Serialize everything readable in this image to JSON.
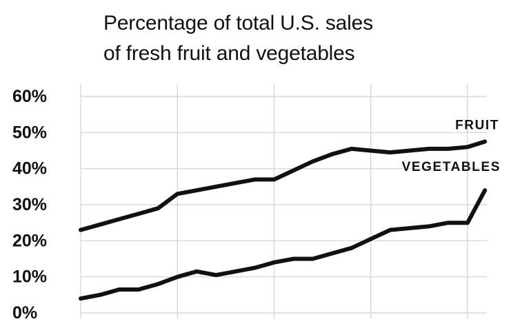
{
  "chart_data": {
    "type": "line",
    "title": "Percentage of total U.S. sales",
    "subtitle": "of fresh fruit and vegetables",
    "xlabel": "",
    "ylabel": "",
    "ylim": [
      0,
      60
    ],
    "xlim": [
      0,
      21
    ],
    "grid": true,
    "legend": "inline",
    "yticks": [
      {
        "value": 60,
        "label": "60%"
      },
      {
        "value": 50,
        "label": "50%"
      },
      {
        "value": 40,
        "label": "40%"
      },
      {
        "value": 30,
        "label": "30%"
      },
      {
        "value": 20,
        "label": "20%"
      },
      {
        "value": 10,
        "label": "10%"
      },
      {
        "value": 0,
        "label": "0%"
      }
    ],
    "x": [
      0,
      1,
      2,
      3,
      4,
      5,
      6,
      7,
      8,
      9,
      10,
      11,
      12,
      13,
      14,
      15,
      16,
      17,
      18,
      19,
      20,
      20.9
    ],
    "series": [
      {
        "name": "FRUIT",
        "values": [
          23,
          24.5,
          26,
          27.5,
          29,
          33,
          34,
          35,
          36,
          37,
          37,
          39.5,
          42,
          44,
          45.5,
          45,
          44.5,
          45,
          45.5,
          45.5,
          46,
          47.5
        ]
      },
      {
        "name": "VEGETABLES",
        "values": [
          4,
          5,
          6.5,
          6.5,
          8,
          10,
          11.5,
          10.5,
          11.5,
          12.5,
          14,
          15,
          15,
          16.5,
          18,
          20.5,
          23,
          23.5,
          24,
          25,
          25,
          34
        ]
      }
    ],
    "colors": {
      "line": "#111111",
      "grid": "#d0d0d0",
      "text": "#111111"
    }
  }
}
